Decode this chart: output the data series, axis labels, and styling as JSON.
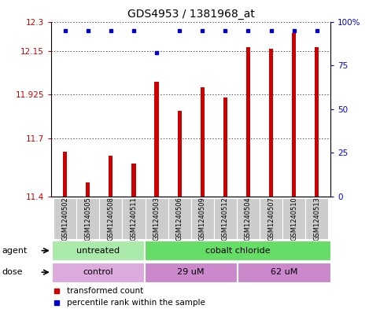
{
  "title": "GDS4953 / 1381968_at",
  "samples": [
    "GSM1240502",
    "GSM1240505",
    "GSM1240508",
    "GSM1240511",
    "GSM1240503",
    "GSM1240506",
    "GSM1240509",
    "GSM1240512",
    "GSM1240504",
    "GSM1240507",
    "GSM1240510",
    "GSM1240513"
  ],
  "bar_values": [
    11.63,
    11.47,
    11.61,
    11.57,
    11.99,
    11.84,
    11.96,
    11.91,
    12.17,
    12.16,
    12.24,
    12.17
  ],
  "percentile_values": [
    95,
    95,
    95,
    95,
    82,
    95,
    95,
    95,
    95,
    95,
    95,
    95
  ],
  "ylim_left": [
    11.4,
    12.3
  ],
  "yticks_left": [
    11.4,
    11.7,
    11.925,
    12.15,
    12.3
  ],
  "ytick_labels_left": [
    "11.4",
    "11.7",
    "11.925",
    "12.15",
    "12.3"
  ],
  "ylim_right": [
    0,
    100
  ],
  "yticks_right": [
    0,
    25,
    50,
    75,
    100
  ],
  "ytick_labels_right": [
    "0",
    "25",
    "50",
    "75",
    "100%"
  ],
  "bar_color": "#cc0000",
  "dot_color": "#0000cc",
  "agent_groups": [
    {
      "label": "untreated",
      "start": 0,
      "end": 4,
      "color": "#aaeaaa"
    },
    {
      "label": "cobalt chloride",
      "start": 4,
      "end": 12,
      "color": "#66dd66"
    }
  ],
  "dose_groups": [
    {
      "label": "control",
      "start": 0,
      "end": 4,
      "color": "#ddaadd"
    },
    {
      "label": "29 uM",
      "start": 4,
      "end": 8,
      "color": "#cc88cc"
    },
    {
      "label": "62 uM",
      "start": 8,
      "end": 12,
      "color": "#cc88cc"
    }
  ],
  "legend_items": [
    {
      "label": "transformed count",
      "color": "#cc0000"
    },
    {
      "label": "percentile rank within the sample",
      "color": "#0000cc"
    }
  ],
  "left_axis_color": "#cc0000",
  "right_axis_color": "#0000cc",
  "background_color": "#ffffff",
  "title_fontsize": 10,
  "tick_fontsize": 7.5,
  "sample_fontsize": 6,
  "band_fontsize": 8,
  "legend_fontsize": 7.5
}
